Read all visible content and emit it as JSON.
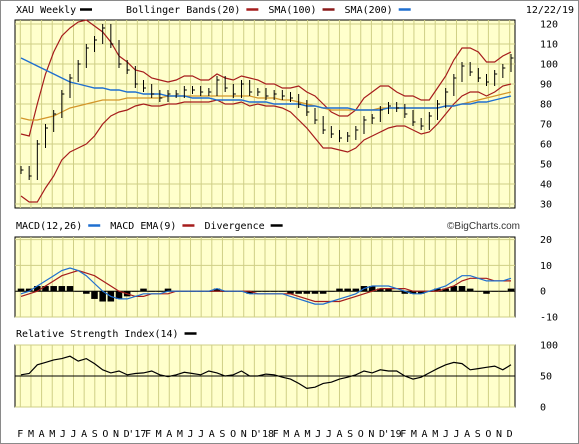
{
  "header": {
    "symbol": "XAU Weekly",
    "date": "12/22/19",
    "legend": [
      {
        "label": "Bollinger Bands(20)",
        "color": "#a61c1c"
      },
      {
        "label": "SMA(100)",
        "color": "#8b1a1a"
      },
      {
        "label": "SMA(200)",
        "color": "#1f6fd0"
      }
    ]
  },
  "macd_header": {
    "legend": [
      {
        "label": "MACD(12,26)",
        "color": "#1f6fd0"
      },
      {
        "label": "MACD EMA(9)",
        "color": "#a61c1c"
      },
      {
        "label": "Divergence",
        "color": "#000000"
      }
    ],
    "watermark": "©BigCharts.com"
  },
  "rsi_header": {
    "legend": [
      {
        "label": "Relative Strength Index(14)",
        "color": "#000000"
      }
    ]
  },
  "colors": {
    "panel_bg": "#ffffcc",
    "grid": "#cfcf86",
    "price": "#000000",
    "bb": "#a61c1c",
    "sma100": "#d4962a",
    "sma200": "#1f6fd0",
    "macd": "#1f6fd0",
    "signal": "#a61c1c",
    "hist": "#000000",
    "rsi": "#000000"
  },
  "x_axis": {
    "labels": [
      "F",
      "M",
      "A",
      "M",
      "J",
      "J",
      "A",
      "S",
      "O",
      "N",
      "D",
      "'17",
      "F",
      "M",
      "A",
      "M",
      "J",
      "J",
      "A",
      "S",
      "O",
      "N",
      "D",
      "'18",
      "F",
      "M",
      "A",
      "M",
      "J",
      "J",
      "A",
      "S",
      "O",
      "N",
      "D",
      "'19",
      "F",
      "M",
      "A",
      "M",
      "J",
      "J",
      "A",
      "S",
      "O",
      "N",
      "D"
    ]
  },
  "chart_data": [
    {
      "type": "line",
      "title": "XAU Weekly",
      "y_ticks": [
        30,
        40,
        50,
        60,
        70,
        80,
        90,
        100,
        110,
        120
      ],
      "ylim": [
        28,
        122
      ],
      "series": [
        {
          "name": "XAU Weekly",
          "kind": "ohlc",
          "values": [
            47,
            44,
            60,
            68,
            75,
            85,
            93,
            100,
            108,
            112,
            118,
            110,
            100,
            97,
            90,
            88,
            85,
            83,
            85,
            85,
            87,
            87,
            86,
            86,
            92,
            88,
            85,
            90,
            86,
            86,
            84,
            85,
            84,
            83,
            80,
            76,
            72,
            67,
            65,
            63,
            64,
            67,
            72,
            73,
            77,
            79,
            78,
            75,
            71,
            69,
            74,
            80,
            86,
            93,
            99,
            96,
            93,
            91,
            95,
            98,
            103
          ]
        },
        {
          "name": "Bollinger Bands(20)",
          "kind": "band_upper",
          "values": [
            65,
            64,
            80,
            95,
            106,
            114,
            118,
            121,
            122,
            119,
            116,
            111,
            104,
            101,
            97,
            96,
            93,
            92,
            91,
            92,
            94,
            94,
            92,
            92,
            95,
            93,
            92,
            94,
            93,
            92,
            90,
            90,
            88,
            88,
            89,
            86,
            84,
            80,
            76,
            74,
            74,
            77,
            83,
            86,
            89,
            89,
            86,
            84,
            84,
            82,
            82,
            88,
            94,
            102,
            108,
            108,
            106,
            101,
            101,
            104,
            106
          ]
        },
        {
          "name": "Bollinger Bands(20)",
          "kind": "band_lower",
          "values": [
            34,
            31,
            31,
            38,
            44,
            52,
            56,
            58,
            60,
            64,
            70,
            74,
            76,
            77,
            79,
            80,
            79,
            79,
            80,
            80,
            81,
            81,
            81,
            81,
            82,
            80,
            80,
            81,
            79,
            80,
            79,
            79,
            78,
            76,
            72,
            68,
            63,
            58,
            58,
            57,
            56,
            58,
            62,
            64,
            66,
            68,
            69,
            69,
            67,
            65,
            66,
            70,
            75,
            80,
            84,
            86,
            86,
            84,
            86,
            89,
            90
          ]
        },
        {
          "name": "SMA(100)",
          "values": [
            73,
            72,
            72,
            73,
            74,
            76,
            78,
            79,
            80,
            81,
            82,
            82,
            82,
            83,
            83,
            83,
            83,
            83,
            84,
            84,
            84,
            84,
            84,
            84,
            84,
            84,
            84,
            84,
            84,
            83,
            83,
            83,
            82,
            82,
            81,
            80,
            79,
            78,
            77,
            77,
            77,
            77,
            77,
            77,
            78,
            78,
            78,
            78,
            78,
            78,
            78,
            78,
            79,
            79,
            80,
            81,
            82,
            83,
            84,
            85,
            86
          ]
        },
        {
          "name": "SMA(200)",
          "values": [
            103,
            101,
            99,
            97,
            95,
            93,
            91,
            90,
            89,
            88,
            88,
            87,
            87,
            86,
            86,
            85,
            85,
            85,
            84,
            84,
            84,
            83,
            83,
            83,
            82,
            82,
            82,
            82,
            81,
            81,
            81,
            80,
            80,
            80,
            80,
            79,
            79,
            78,
            78,
            78,
            78,
            77,
            77,
            77,
            77,
            78,
            78,
            78,
            78,
            78,
            78,
            78,
            79,
            79,
            80,
            80,
            81,
            81,
            82,
            83,
            84
          ]
        }
      ]
    },
    {
      "type": "line",
      "title": "MACD(12,26)",
      "y_ticks": [
        20,
        10,
        0,
        -10
      ],
      "ylim": [
        -10,
        21
      ],
      "series": [
        {
          "name": "MACD(12,26)",
          "values": [
            -1,
            0,
            2,
            4,
            6,
            8,
            9,
            8,
            6,
            3,
            0,
            -2,
            -3,
            -3,
            -2,
            -1,
            -1,
            -1,
            0,
            0,
            0,
            0,
            0,
            0,
            1,
            0,
            0,
            0,
            -1,
            -1,
            -1,
            -1,
            -1,
            -2,
            -3,
            -4,
            -5,
            -5,
            -4,
            -3,
            -2,
            -1,
            1,
            2,
            2,
            2,
            1,
            0,
            -1,
            -1,
            0,
            1,
            2,
            4,
            6,
            6,
            5,
            4,
            4,
            4,
            5
          ]
        },
        {
          "name": "MACD EMA(9)",
          "values": [
            -2,
            -1,
            0,
            2,
            4,
            6,
            7,
            8,
            7,
            6,
            4,
            2,
            0,
            -1,
            -2,
            -2,
            -1,
            -1,
            -1,
            0,
            0,
            0,
            0,
            0,
            0,
            0,
            0,
            0,
            0,
            -1,
            -1,
            -1,
            -1,
            -1,
            -2,
            -3,
            -4,
            -4,
            -4,
            -4,
            -3,
            -2,
            -1,
            0,
            1,
            1,
            1,
            1,
            0,
            0,
            0,
            0,
            1,
            2,
            4,
            5,
            5,
            5,
            4,
            4,
            4
          ]
        },
        {
          "name": "Divergence",
          "kind": "histogram",
          "values": [
            1,
            1,
            2,
            2,
            2,
            2,
            2,
            0,
            -1,
            -3,
            -4,
            -4,
            -3,
            -2,
            0,
            1,
            0,
            0,
            1,
            0,
            0,
            0,
            0,
            0,
            1,
            0,
            0,
            0,
            -1,
            0,
            0,
            0,
            0,
            -1,
            -1,
            -1,
            -1,
            -1,
            0,
            1,
            1,
            1,
            2,
            2,
            1,
            1,
            0,
            -1,
            -1,
            -1,
            0,
            1,
            1,
            2,
            2,
            1,
            0,
            -1,
            0,
            0,
            1
          ]
        }
      ]
    },
    {
      "type": "line",
      "title": "Relative Strength Index(14)",
      "y_ticks": [
        100,
        50,
        0
      ],
      "ylim": [
        0,
        100
      ],
      "series": [
        {
          "name": "Relative Strength Index(14)",
          "values": [
            52,
            54,
            68,
            72,
            76,
            78,
            82,
            74,
            78,
            70,
            60,
            55,
            58,
            52,
            54,
            55,
            58,
            52,
            49,
            52,
            56,
            54,
            52,
            58,
            55,
            50,
            52,
            58,
            50,
            50,
            53,
            52,
            48,
            45,
            38,
            30,
            32,
            38,
            40,
            45,
            48,
            52,
            58,
            55,
            60,
            58,
            58,
            50,
            45,
            48,
            55,
            62,
            68,
            72,
            70,
            60,
            62,
            64,
            66,
            60,
            68
          ]
        }
      ]
    }
  ]
}
